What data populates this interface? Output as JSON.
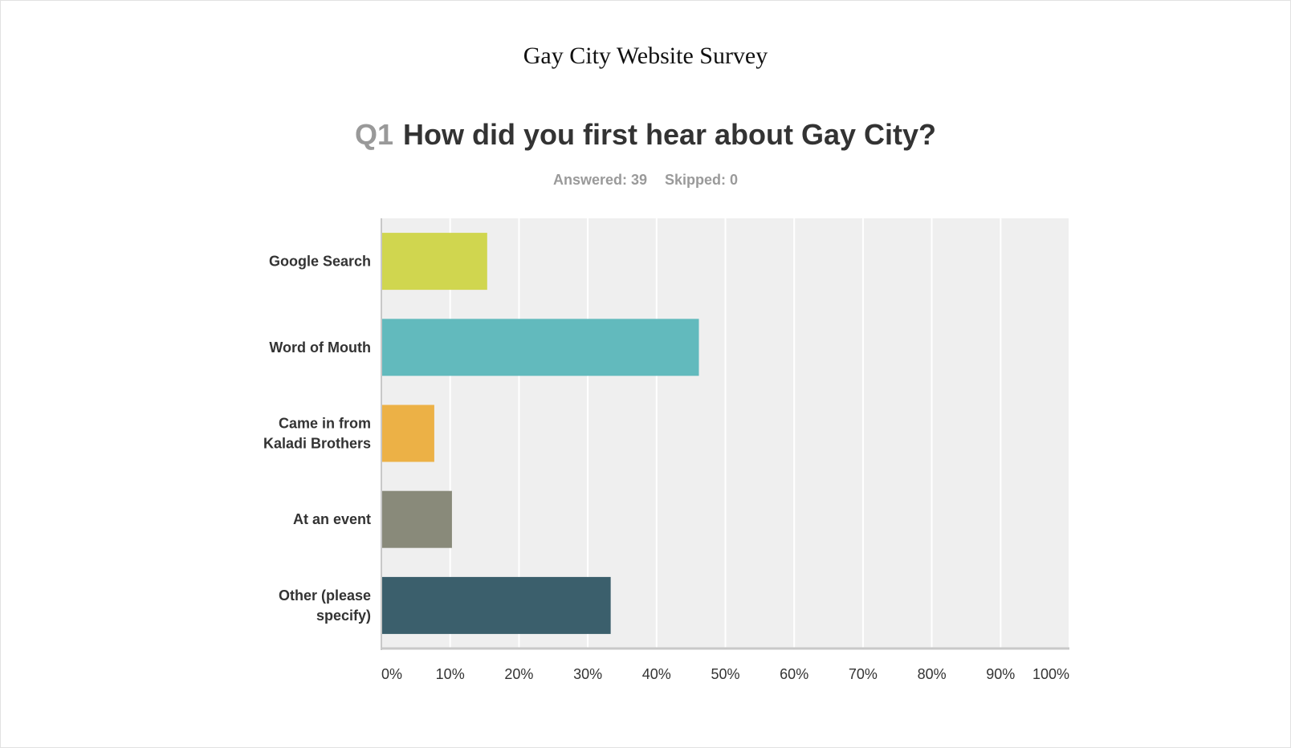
{
  "survey_title": "Gay City Website Survey",
  "question": {
    "number": "Q1",
    "text": "How did you first hear about Gay City?"
  },
  "stats": {
    "answered": "Answered: 39",
    "skipped": "Skipped: 0"
  },
  "chart_data": {
    "type": "bar",
    "orientation": "horizontal",
    "categories": [
      [
        "Google Search"
      ],
      [
        "Word of Mouth"
      ],
      [
        "Came in from",
        "Kaladi Brothers"
      ],
      [
        "At an event"
      ],
      [
        "Other (please",
        "specify)"
      ]
    ],
    "values": [
      15.38,
      46.15,
      7.69,
      10.26,
      33.33
    ],
    "colors": [
      "#d0d64f",
      "#62babd",
      "#ecb146",
      "#898a7a",
      "#3b5f6c"
    ],
    "xlim": [
      0,
      100
    ],
    "ticks": [
      "0%",
      "10%",
      "20%",
      "30%",
      "40%",
      "50%",
      "60%",
      "70%",
      "80%",
      "90%",
      "100%"
    ],
    "grid": true,
    "plot_background": "#efefef"
  }
}
